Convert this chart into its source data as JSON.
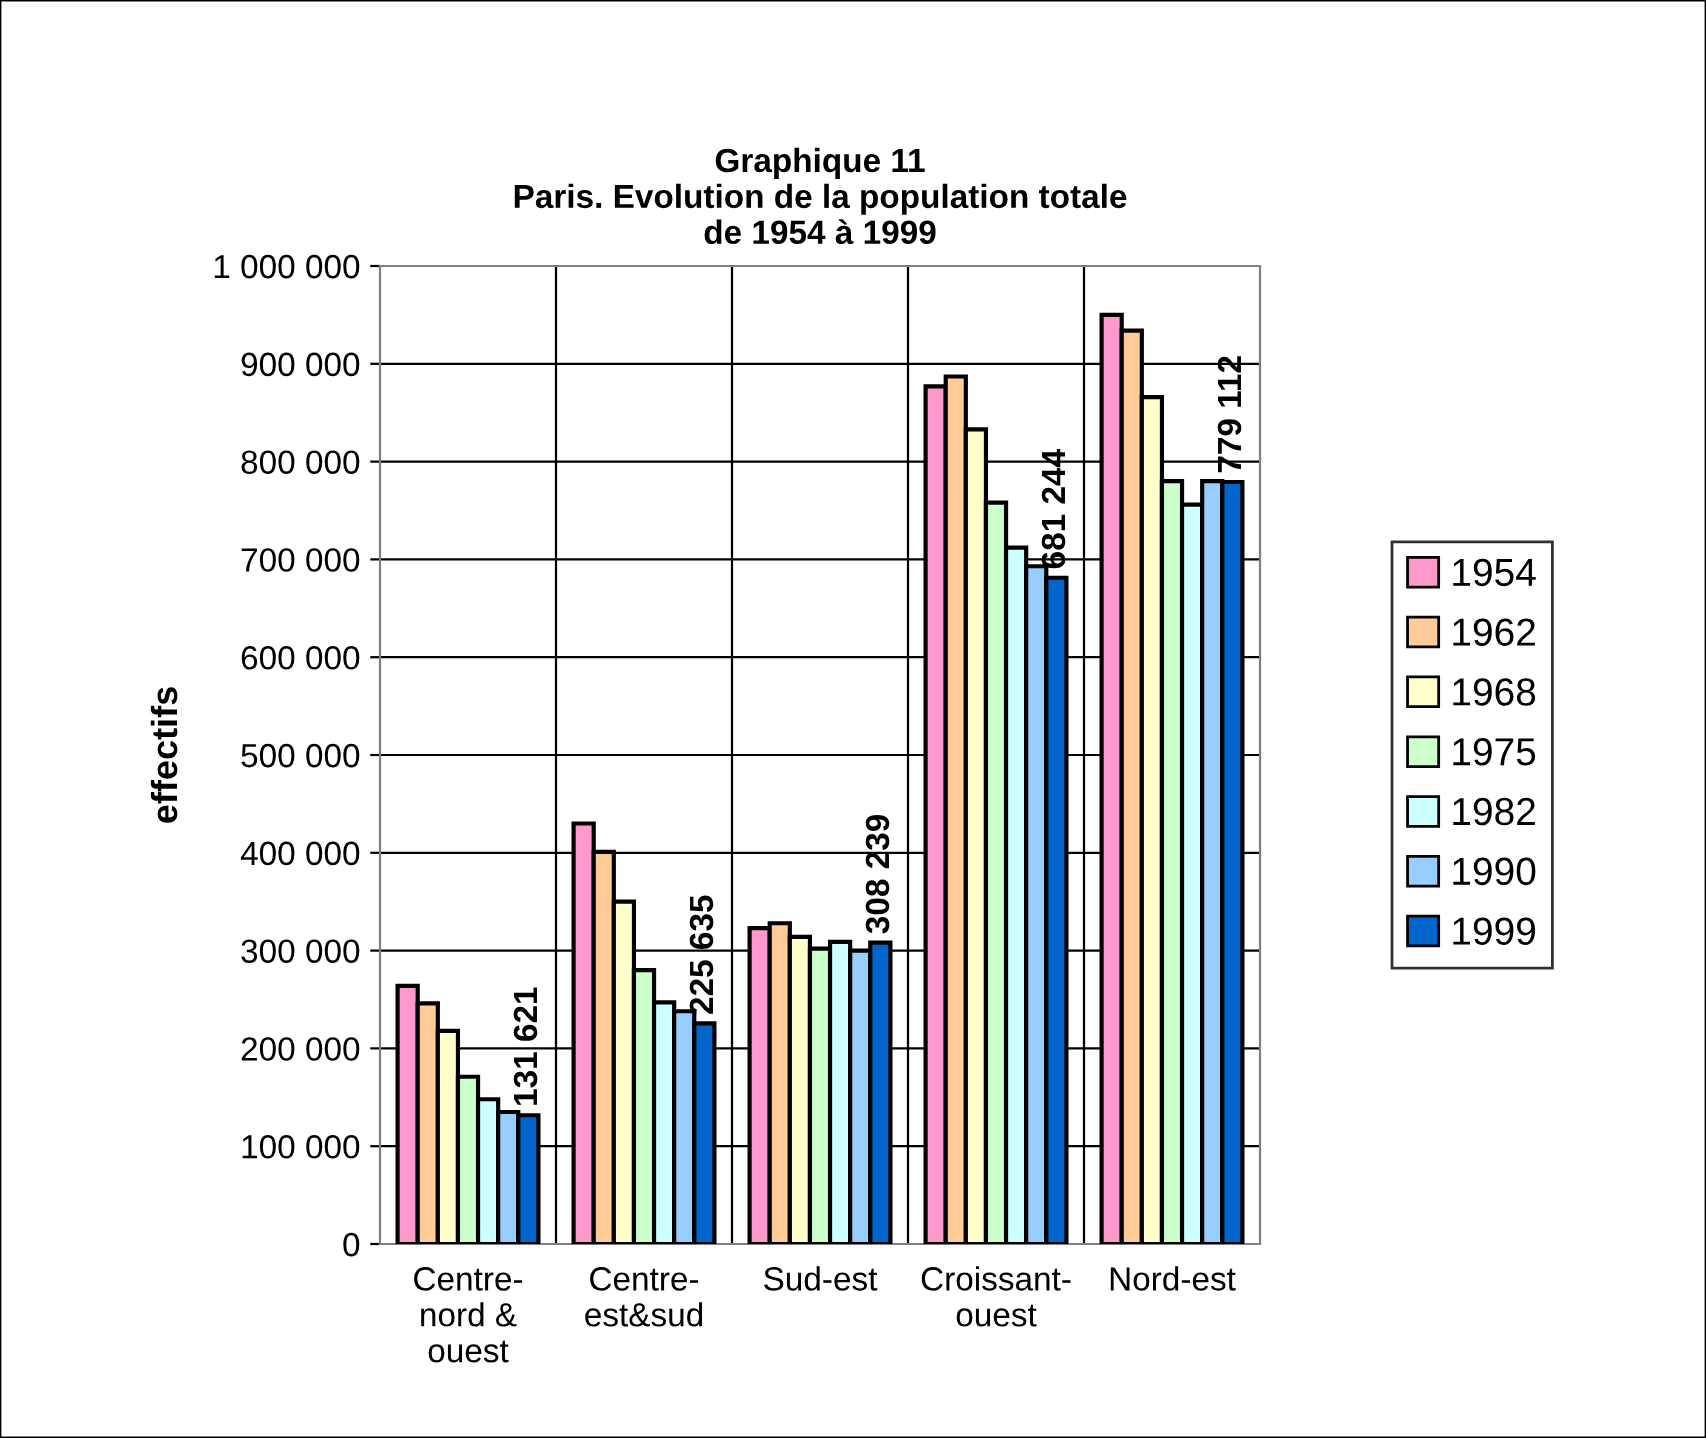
{
  "chart_data": {
    "type": "bar",
    "title": "Graphique 11\nParis. Evolution de la population totale\nde 1954 à 1999",
    "ylabel": "effectifs",
    "categories": [
      "Centre-\nnord &\nouest",
      "Centre-\nest&sud",
      "Sud-est",
      "Croissant-\nouest",
      "Nord-est"
    ],
    "series": [
      {
        "name": "1954",
        "color": "#ff99cc",
        "values": [
          264000,
          430000,
          323000,
          877000,
          950000
        ]
      },
      {
        "name": "1962",
        "color": "#ffcc99",
        "values": [
          246000,
          401000,
          328000,
          887000,
          934000
        ]
      },
      {
        "name": "1968",
        "color": "#ffffcc",
        "values": [
          218000,
          350000,
          314000,
          833000,
          866000
        ]
      },
      {
        "name": "1975",
        "color": "#ccffcc",
        "values": [
          171000,
          280000,
          302000,
          758000,
          780000
        ]
      },
      {
        "name": "1982",
        "color": "#ccffff",
        "values": [
          148000,
          247000,
          309000,
          712000,
          756000
        ]
      },
      {
        "name": "1990",
        "color": "#99ccff",
        "values": [
          135000,
          238000,
          300000,
          693000,
          780000
        ]
      },
      {
        "name": "1999",
        "color": "#0066cc",
        "values": [
          131621,
          225635,
          308239,
          681244,
          779112
        ],
        "value_labels": [
          "131 621",
          "225 635",
          "308 239",
          "681 244",
          "779 112"
        ]
      }
    ],
    "ylim": [
      0,
      1000000
    ],
    "yticks": [
      0,
      {
        "value": 100000,
        "label": "100 000"
      },
      {
        "value": 200000,
        "label": "200 000"
      },
      {
        "value": 300000,
        "label": "300 000"
      },
      {
        "value": 400000,
        "label": "400 000"
      },
      {
        "value": 500000,
        "label": "500 000"
      },
      {
        "value": 600000,
        "label": "600 000"
      },
      {
        "value": 700000,
        "label": "700 000"
      },
      {
        "value": 800000,
        "label": "800 000"
      },
      {
        "value": 900000,
        "label": "900 000"
      },
      {
        "value": 1000000,
        "label": "1 000 000"
      }
    ],
    "grid": true,
    "legend": "right"
  }
}
